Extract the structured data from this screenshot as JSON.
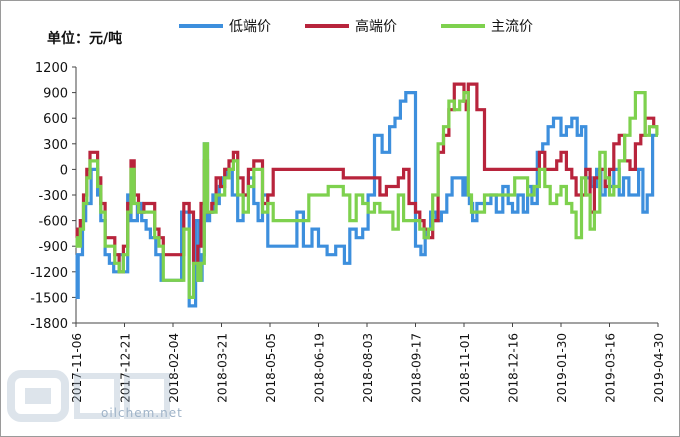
{
  "unit_label": "单位：元/吨",
  "watermark": "oilchem.net",
  "chart_data": {
    "type": "line",
    "ylabel": "单位：元/吨",
    "xlabel": "",
    "ylim": [
      -1800,
      1200
    ],
    "yticks": [
      1200,
      900,
      600,
      300,
      0,
      -300,
      -600,
      -900,
      -1200,
      -1500,
      -1800
    ],
    "xlim": [
      "2017-11-06",
      "2019-04-30"
    ],
    "xticks": [
      "2017-11-06",
      "2017-12-21",
      "2018-02-04",
      "2018-03-21",
      "2018-05-05",
      "2018-06-19",
      "2018-08-03",
      "2018-09-17",
      "2018-11-01",
      "2018-12-16",
      "2019-01-30",
      "2019-03-16",
      "2019-04-30"
    ],
    "grid": false,
    "legend_position": "top",
    "series": [
      {
        "name": "低端价",
        "color": "#3d8fdd",
        "x": [
          "2017-11-06",
          "2017-11-07",
          "2017-11-08",
          "2017-11-12",
          "2017-11-15",
          "2017-11-20",
          "2017-11-22",
          "2017-11-26",
          "2017-11-29",
          "2017-12-03",
          "2017-12-07",
          "2017-12-11",
          "2017-12-16",
          "2017-12-20",
          "2017-12-24",
          "2017-12-27",
          "2017-12-30",
          "2018-01-02",
          "2018-01-06",
          "2018-01-10",
          "2018-01-14",
          "2018-01-19",
          "2018-01-24",
          "2018-01-29",
          "2018-02-04",
          "2018-02-12",
          "2018-02-19",
          "2018-02-25",
          "2018-02-28",
          "2018-03-03",
          "2018-03-05",
          "2018-03-08",
          "2018-03-10",
          "2018-03-13",
          "2018-03-16",
          "2018-03-19",
          "2018-03-22",
          "2018-03-26",
          "2018-03-31",
          "2018-04-05",
          "2018-04-10",
          "2018-04-15",
          "2018-04-20",
          "2018-04-24",
          "2018-04-28",
          "2018-05-03",
          "2018-05-08",
          "2018-05-12",
          "2018-05-16",
          "2018-05-21",
          "2018-05-25",
          "2018-05-30",
          "2018-06-05",
          "2018-06-13",
          "2018-06-19",
          "2018-06-27",
          "2018-07-05",
          "2018-07-13",
          "2018-07-18",
          "2018-07-24",
          "2018-07-30",
          "2018-08-04",
          "2018-08-10",
          "2018-08-17",
          "2018-08-24",
          "2018-08-29",
          "2018-09-03",
          "2018-09-08",
          "2018-09-12",
          "2018-09-17",
          "2018-09-22",
          "2018-09-26",
          "2018-10-01",
          "2018-10-06",
          "2018-10-11",
          "2018-10-16",
          "2018-10-21",
          "2018-10-26",
          "2018-10-31",
          "2018-11-02",
          "2018-11-04",
          "2018-11-06",
          "2018-11-09",
          "2018-11-13",
          "2018-11-20",
          "2018-11-26",
          "2018-12-01",
          "2018-12-07",
          "2018-12-12",
          "2018-12-16",
          "2018-12-21",
          "2018-12-26",
          "2018-12-30",
          "2019-01-03",
          "2019-01-08",
          "2019-01-13",
          "2019-01-18",
          "2019-01-23",
          "2019-01-30",
          "2019-02-04",
          "2019-02-09",
          "2019-02-14",
          "2019-02-18",
          "2019-02-22",
          "2019-02-27",
          "2019-03-04",
          "2019-03-08",
          "2019-03-12",
          "2019-03-16",
          "2019-03-20",
          "2019-03-25",
          "2019-03-29",
          "2019-04-03",
          "2019-04-08",
          "2019-04-12",
          "2019-04-16",
          "2019-04-20",
          "2019-04-25",
          "2019-04-28"
        ],
        "values": [
          -1000,
          -1500,
          -1000,
          -600,
          -400,
          0,
          0,
          -300,
          -600,
          -1000,
          -1100,
          -1200,
          -1000,
          -1200,
          -300,
          -600,
          -600,
          -400,
          -600,
          -700,
          -800,
          -1000,
          -1300,
          -1300,
          -1300,
          -500,
          -1600,
          -600,
          -1300,
          -1000,
          300,
          -600,
          -500,
          -300,
          -400,
          -200,
          -100,
          0,
          -300,
          -600,
          -300,
          -100,
          -400,
          -600,
          -300,
          -900,
          -900,
          -900,
          -900,
          -900,
          -900,
          -500,
          -900,
          -700,
          -900,
          -1000,
          -900,
          -1100,
          -700,
          -800,
          -700,
          -300,
          400,
          200,
          500,
          600,
          800,
          900,
          900,
          -900,
          -1000,
          -700,
          -500,
          -600,
          -500,
          -300,
          -100,
          -100,
          -300,
          -100,
          -300,
          -400,
          -600,
          -400,
          -400,
          -300,
          -500,
          -200,
          -400,
          -500,
          -300,
          -500,
          -200,
          -400,
          200,
          300,
          500,
          600,
          400,
          500,
          600,
          400,
          500,
          -100,
          -200,
          0,
          -300,
          -100,
          -200,
          0,
          -300,
          -100,
          -300,
          -300,
          0,
          -500,
          -300,
          400,
          400
        ],
        "display_values": [
          -1000,
          -1500,
          -1000,
          -600,
          -400,
          0,
          0,
          -300,
          -600,
          -1000,
          -1100,
          -1200,
          -1000,
          -1200,
          -300,
          -600,
          -600,
          -400,
          -600,
          -700,
          -800,
          -1000,
          -1300,
          -1300,
          -1300,
          -500,
          -1600,
          -600,
          -1300,
          -1000,
          300,
          -600,
          -500,
          -300,
          -400,
          -200,
          -100,
          0,
          -300,
          -600,
          -300,
          -100,
          -400,
          -600,
          -300,
          -900,
          -900,
          -900,
          -900,
          -900,
          -900,
          -500,
          -900,
          -700,
          -900,
          -1000,
          -900,
          -1100,
          -700,
          -800,
          -700,
          -300,
          400,
          200,
          500,
          600,
          800,
          900,
          900,
          -900,
          -1000,
          -700,
          -500,
          -600,
          -500,
          -300,
          -100,
          -100,
          -300,
          -100,
          -300,
          -400,
          -600,
          -400,
          -400,
          -300,
          -500,
          -200,
          -400,
          -500,
          -300,
          -500,
          -200,
          -400,
          200,
          300,
          500,
          600,
          400,
          500,
          600,
          400,
          500,
          -100,
          -200,
          0,
          -300,
          -100,
          -200,
          0,
          -300,
          -100,
          -300,
          -300,
          0,
          -500,
          -300,
          400,
          400
        ]
      },
      {
        "name": "高端价",
        "color": "#b8243c",
        "x": [
          "2017-11-06",
          "2017-11-07",
          "2017-11-10",
          "2017-11-13",
          "2017-11-16",
          "2017-11-19",
          "2017-11-22",
          "2017-11-26",
          "2017-11-29",
          "2017-12-03",
          "2017-12-08",
          "2017-12-12",
          "2017-12-16",
          "2017-12-20",
          "2017-12-24",
          "2017-12-27",
          "2017-12-30",
          "2018-01-03",
          "2018-01-08",
          "2018-01-14",
          "2018-01-18",
          "2018-01-22",
          "2018-01-26",
          "2018-02-02",
          "2018-02-08",
          "2018-02-14",
          "2018-02-19",
          "2018-02-23",
          "2018-02-27",
          "2018-03-02",
          "2018-03-05",
          "2018-03-08",
          "2018-03-12",
          "2018-03-16",
          "2018-03-20",
          "2018-03-24",
          "2018-03-28",
          "2018-04-01",
          "2018-04-05",
          "2018-04-10",
          "2018-04-15",
          "2018-04-20",
          "2018-04-24",
          "2018-04-28",
          "2018-05-03",
          "2018-05-08",
          "2018-05-12",
          "2018-05-18",
          "2018-05-22",
          "2018-05-26",
          "2018-06-01",
          "2018-06-10",
          "2018-06-19",
          "2018-06-28",
          "2018-07-06",
          "2018-07-12",
          "2018-07-18",
          "2018-07-24",
          "2018-07-30",
          "2018-08-04",
          "2018-08-10",
          "2018-08-15",
          "2018-08-21",
          "2018-08-27",
          "2018-09-01",
          "2018-09-06",
          "2018-09-11",
          "2018-09-17",
          "2018-09-21",
          "2018-09-25",
          "2018-09-29",
          "2018-10-03",
          "2018-10-08",
          "2018-10-13",
          "2018-10-18",
          "2018-10-23",
          "2018-10-28",
          "2018-11-01",
          "2018-11-03",
          "2018-11-05",
          "2018-11-08",
          "2018-11-13",
          "2018-11-20",
          "2018-11-28",
          "2018-12-05",
          "2018-12-12",
          "2018-12-18",
          "2018-12-24",
          "2018-12-30",
          "2019-01-05",
          "2019-01-10",
          "2019-01-15",
          "2019-01-20",
          "2019-01-26",
          "2019-01-30",
          "2019-02-04",
          "2019-02-09",
          "2019-02-13",
          "2019-02-18",
          "2019-02-22",
          "2019-02-26",
          "2019-03-02",
          "2019-03-07",
          "2019-03-12",
          "2019-03-16",
          "2019-03-20",
          "2019-03-25",
          "2019-03-30",
          "2019-04-04",
          "2019-04-09",
          "2019-04-14",
          "2019-04-18",
          "2019-04-22",
          "2019-04-26",
          "2019-04-29"
        ],
        "values": [
          -700,
          -800,
          -600,
          -300,
          0,
          200,
          200,
          -100,
          -400,
          -800,
          -800,
          -1000,
          -1200,
          -900,
          -400,
          100,
          -300,
          -500,
          -400,
          -400,
          -700,
          -800,
          -1000,
          -1000,
          -1000,
          -400,
          -500,
          -1100,
          -900,
          -400,
          100,
          -500,
          -400,
          -100,
          -200,
          0,
          100,
          200,
          -100,
          -300,
          0,
          100,
          100,
          -400,
          -300,
          0,
          0,
          0,
          0,
          0,
          0,
          0,
          0,
          0,
          0,
          -100,
          -100,
          -100,
          -100,
          -100,
          -100,
          -300,
          -200,
          -200,
          -100,
          0,
          -400,
          -500,
          -600,
          -700,
          -800,
          -600,
          200,
          400,
          700,
          1000,
          1000,
          800,
          700,
          1000,
          1000,
          700,
          0,
          0,
          0,
          0,
          0,
          0,
          0,
          0,
          200,
          0,
          0,
          100,
          200,
          0,
          -100,
          -300,
          -300,
          0,
          -500,
          -100,
          0,
          -200,
          0,
          300,
          400,
          100,
          0,
          300,
          400,
          600,
          600,
          500,
          500
        ]
      },
      {
        "name": "主流价",
        "color": "#7ed14e",
        "x": [
          "2017-11-06",
          "2017-11-07",
          "2017-11-10",
          "2017-11-13",
          "2017-11-16",
          "2017-11-19",
          "2017-11-22",
          "2017-11-26",
          "2017-11-29",
          "2017-12-03",
          "2017-12-08",
          "2017-12-12",
          "2017-12-16",
          "2017-12-20",
          "2017-12-24",
          "2017-12-27",
          "2017-12-30",
          "2018-01-03",
          "2018-01-08",
          "2018-01-14",
          "2018-01-18",
          "2018-01-22",
          "2018-01-26",
          "2018-02-02",
          "2018-02-08",
          "2018-02-14",
          "2018-02-19",
          "2018-02-23",
          "2018-02-27",
          "2018-03-02",
          "2018-03-05",
          "2018-03-08",
          "2018-03-12",
          "2018-03-16",
          "2018-03-20",
          "2018-03-24",
          "2018-03-28",
          "2018-04-01",
          "2018-04-05",
          "2018-04-10",
          "2018-04-15",
          "2018-04-20",
          "2018-04-24",
          "2018-04-28",
          "2018-05-03",
          "2018-05-08",
          "2018-05-12",
          "2018-05-18",
          "2018-05-22",
          "2018-05-26",
          "2018-06-01",
          "2018-06-10",
          "2018-06-19",
          "2018-06-28",
          "2018-07-06",
          "2018-07-12",
          "2018-07-18",
          "2018-07-24",
          "2018-07-30",
          "2018-08-04",
          "2018-08-10",
          "2018-08-15",
          "2018-08-21",
          "2018-08-27",
          "2018-09-01",
          "2018-09-06",
          "2018-09-11",
          "2018-09-17",
          "2018-09-21",
          "2018-09-25",
          "2018-09-29",
          "2018-10-03",
          "2018-10-08",
          "2018-10-13",
          "2018-10-18",
          "2018-10-23",
          "2018-10-28",
          "2018-11-01",
          "2018-11-03",
          "2018-11-05",
          "2018-11-08",
          "2018-11-13",
          "2018-11-20",
          "2018-11-28",
          "2018-12-05",
          "2018-12-12",
          "2018-12-18",
          "2018-12-24",
          "2018-12-30",
          "2019-01-05",
          "2019-01-10",
          "2019-01-15",
          "2019-01-20",
          "2019-01-26",
          "2019-01-30",
          "2019-02-04",
          "2019-02-09",
          "2019-02-13",
          "2019-02-18",
          "2019-02-22",
          "2019-02-26",
          "2019-03-02",
          "2019-03-07",
          "2019-03-12",
          "2019-03-16",
          "2019-03-20",
          "2019-03-25",
          "2019-03-30",
          "2019-04-04",
          "2019-04-09",
          "2019-04-14",
          "2019-04-18",
          "2019-04-22",
          "2019-04-26",
          "2019-04-29"
        ],
        "values": [
          -800,
          -900,
          -700,
          -400,
          -100,
          100,
          100,
          -200,
          -500,
          -900,
          -900,
          -1100,
          -1200,
          -1000,
          -500,
          0,
          -400,
          -500,
          -500,
          -500,
          -800,
          -900,
          -1300,
          -1300,
          -1300,
          -700,
          -1500,
          -1100,
          -1300,
          -1100,
          300,
          -500,
          -500,
          -300,
          -300,
          -100,
          0,
          100,
          -300,
          -500,
          -200,
          0,
          0,
          -500,
          -400,
          -600,
          -600,
          -600,
          -600,
          -600,
          -600,
          -300,
          -300,
          -200,
          -200,
          -300,
          -600,
          -300,
          -400,
          -500,
          -400,
          -500,
          -500,
          -700,
          -300,
          -600,
          -600,
          -600,
          -700,
          -800,
          -700,
          -300,
          300,
          500,
          800,
          700,
          800,
          900,
          900,
          -300,
          -500,
          -500,
          -300,
          -300,
          -300,
          -300,
          -100,
          -100,
          -300,
          -200,
          0,
          -200,
          -400,
          -300,
          -200,
          -400,
          -500,
          -800,
          -100,
          -300,
          -700,
          -500,
          200,
          -100,
          -300,
          -200,
          100,
          400,
          600,
          900,
          900,
          400,
          500,
          500,
          400
        ]
      }
    ]
  }
}
